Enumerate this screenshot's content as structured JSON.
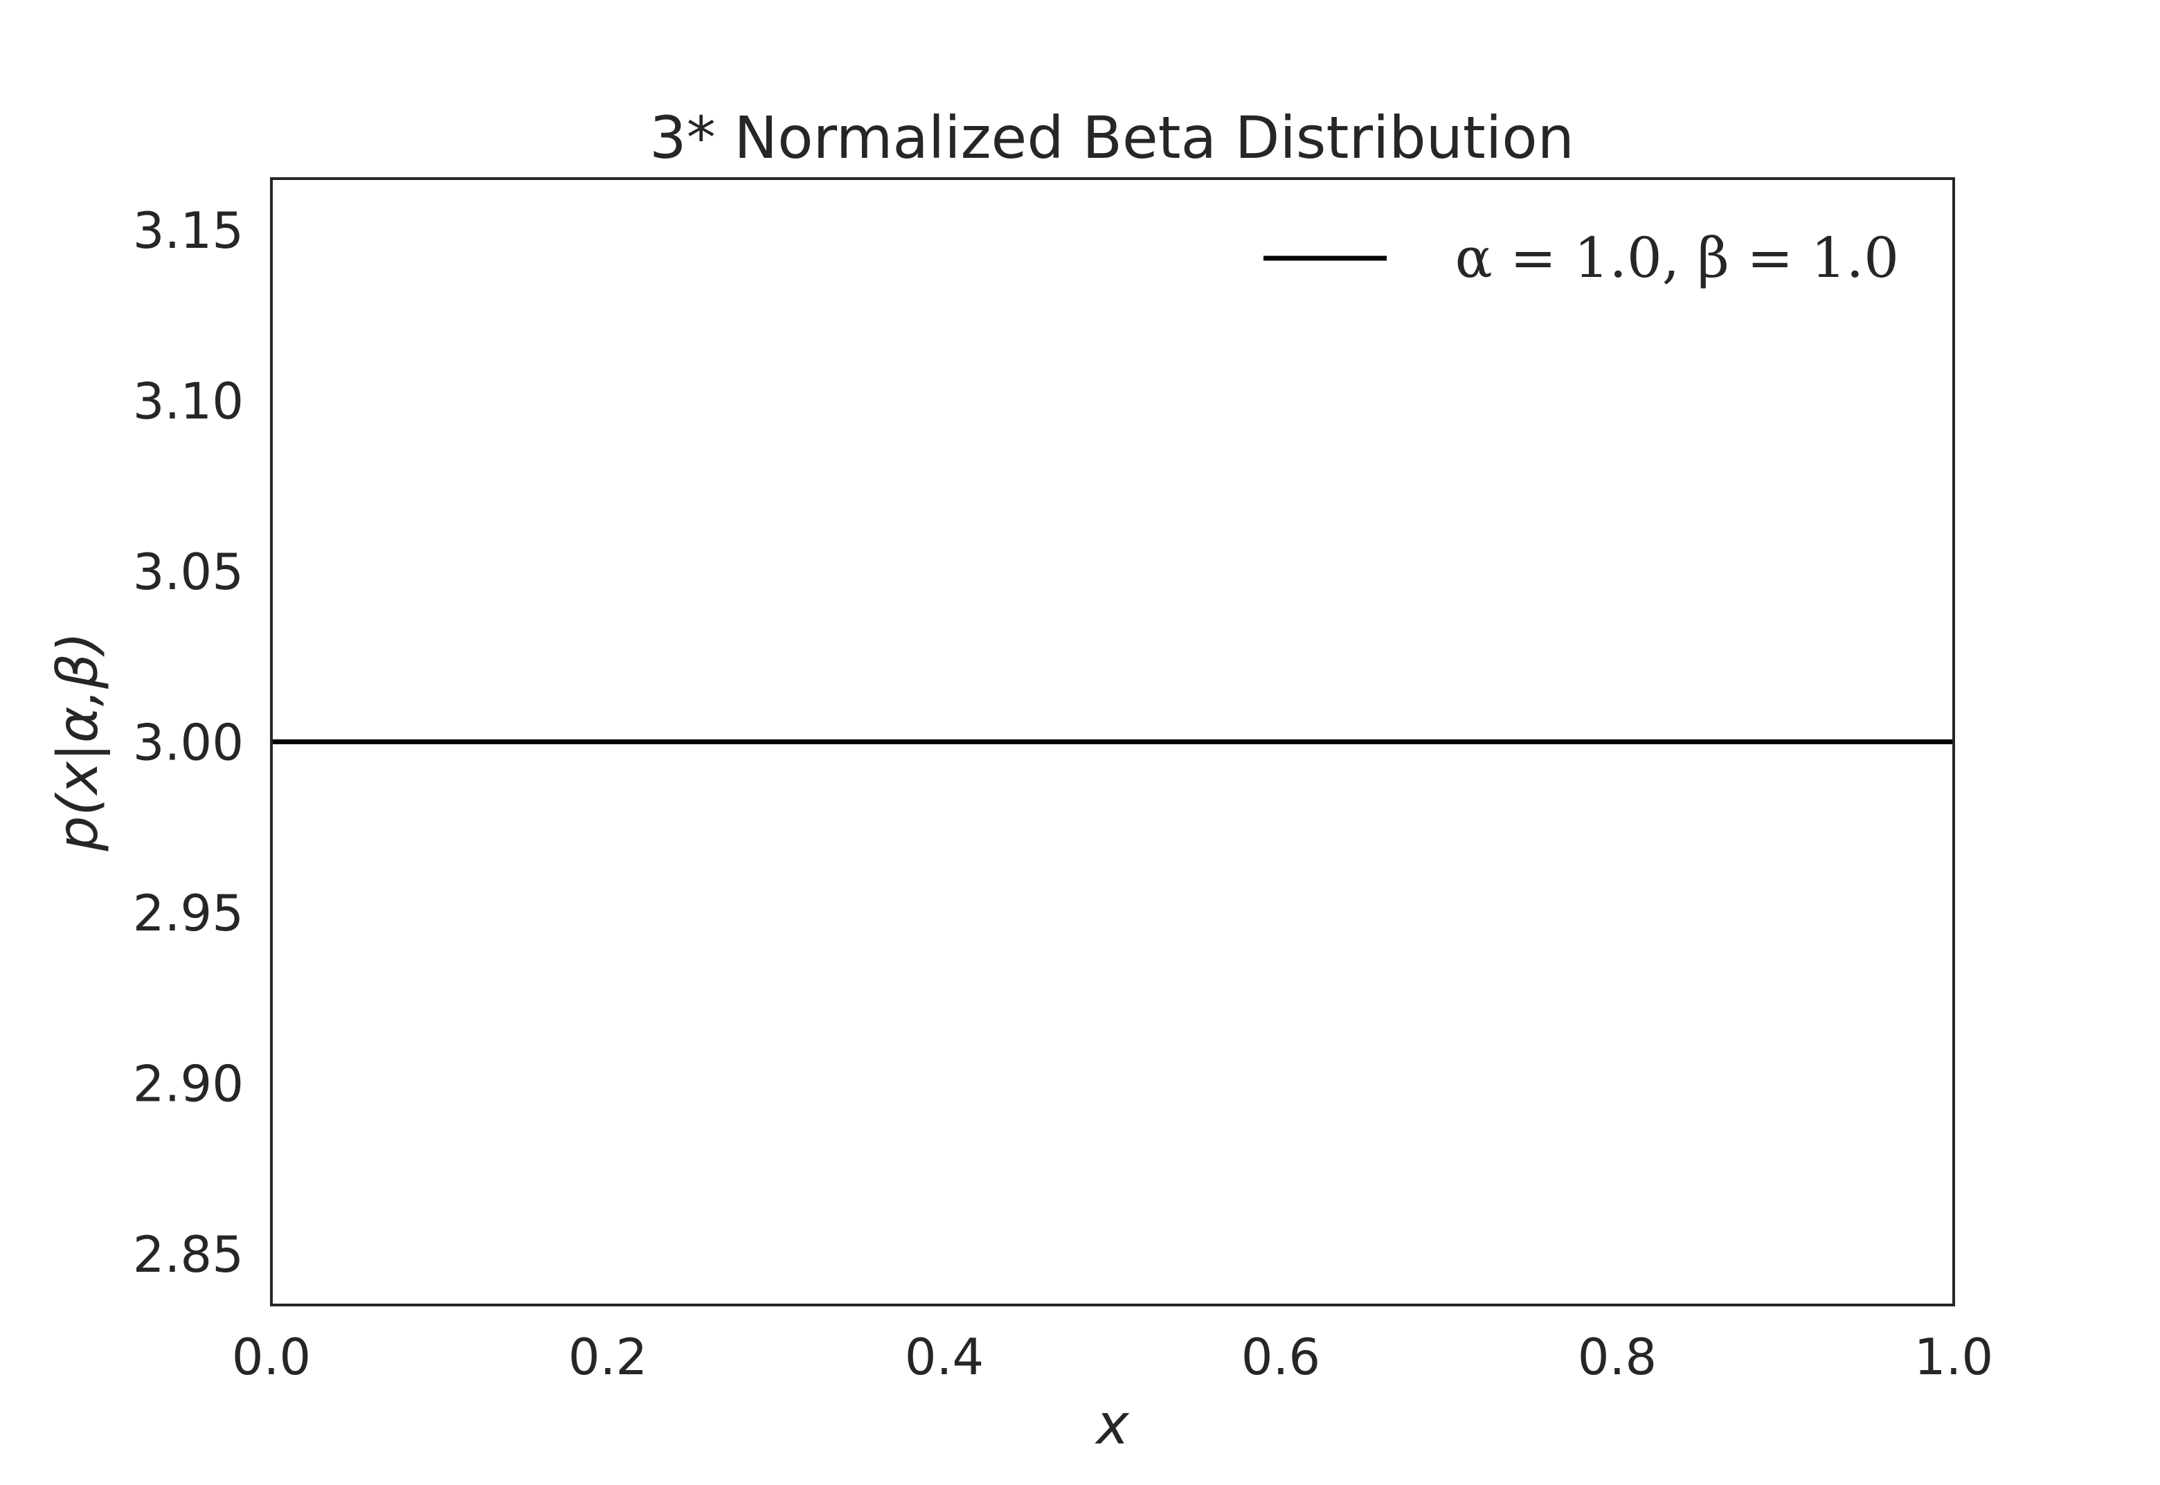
{
  "chart_data": {
    "type": "line",
    "title": "3* Normalized Beta Distribution",
    "xlabel": "x",
    "ylabel": "p(x|α,β)",
    "xlim": [
      0.0,
      1.0
    ],
    "ylim": [
      2.835,
      3.165
    ],
    "xticks": [
      0.0,
      0.2,
      0.4,
      0.6,
      0.8,
      1.0
    ],
    "xtick_labels": [
      "0.0",
      "0.2",
      "0.4",
      "0.6",
      "0.8",
      "1.0"
    ],
    "yticks": [
      2.85,
      2.9,
      2.95,
      3.0,
      3.05,
      3.1,
      3.15
    ],
    "ytick_labels": [
      "2.85",
      "2.90",
      "2.95",
      "3.00",
      "3.05",
      "3.10",
      "3.15"
    ],
    "grid": false,
    "legend_position": "top-right",
    "series": [
      {
        "name": "α = 1.0,  β = 1.0",
        "color": "#000000",
        "x": [
          0.0,
          0.25,
          0.5,
          0.75,
          1.0
        ],
        "y": [
          3.0,
          3.0,
          3.0,
          3.0,
          3.0
        ]
      }
    ]
  }
}
